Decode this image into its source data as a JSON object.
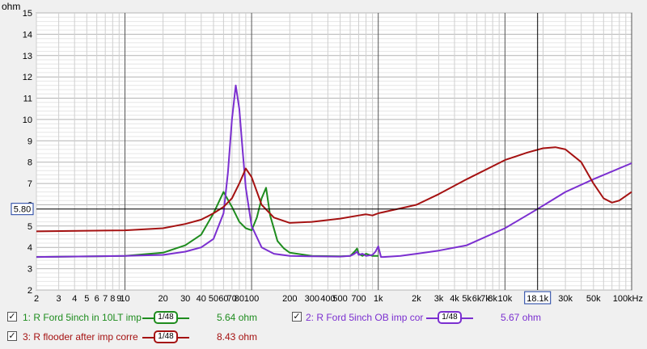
{
  "chart_data": {
    "type": "line",
    "yunit": "ohm",
    "xunit": "kHz",
    "ylim": [
      2,
      15
    ],
    "xlim": [
      2,
      100000
    ],
    "xscale": "log",
    "grid": true,
    "yticks": [
      "2",
      "3",
      "4",
      "5",
      "6",
      "7",
      "8",
      "9",
      "10",
      "11",
      "12",
      "13",
      "14",
      "15"
    ],
    "ytick_values": [
      2,
      3,
      4,
      5,
      6,
      7,
      8,
      9,
      10,
      11,
      12,
      13,
      14,
      15
    ],
    "xticks": [
      "2",
      "3",
      "4",
      "5",
      "6",
      "7",
      "8",
      "9",
      "10",
      "20",
      "30",
      "40",
      "50",
      "60",
      "70",
      "80",
      "100",
      "200",
      "300",
      "400",
      "500",
      "700",
      "1k",
      "2k",
      "3k",
      "4k",
      "5k",
      "6k",
      "7k",
      "8k",
      "10k",
      "18.1k",
      "30k",
      "50k",
      "100kHz"
    ],
    "xtick_values": [
      2,
      3,
      4,
      5,
      6,
      7,
      8,
      9,
      10,
      20,
      30,
      40,
      50,
      60,
      70,
      80,
      100,
      200,
      300,
      400,
      500,
      700,
      1000,
      2000,
      3000,
      4000,
      5000,
      6000,
      7000,
      8000,
      10000,
      18100,
      30000,
      50000,
      100000
    ],
    "cursor": {
      "x": 18100,
      "x_label": "18.1k",
      "y": 5.8,
      "y_label": "5.80"
    },
    "series": [
      {
        "name": "1: R Ford 5inch in 10LT imp",
        "color": "#1e8c1e",
        "x": [
          2,
          10,
          20,
          30,
          40,
          50,
          60,
          70,
          80,
          90,
          100,
          110,
          120,
          130,
          140,
          160,
          180,
          200,
          300,
          500,
          600,
          650,
          680,
          700,
          750,
          800,
          900,
          1000
        ],
        "y": [
          3.55,
          3.6,
          3.75,
          4.1,
          4.6,
          5.6,
          6.6,
          5.9,
          5.2,
          4.9,
          4.8,
          5.4,
          6.3,
          6.8,
          5.5,
          4.3,
          3.95,
          3.75,
          3.6,
          3.58,
          3.6,
          3.8,
          3.95,
          3.7,
          3.6,
          3.7,
          3.6,
          3.6
        ]
      },
      {
        "name": "2: R Ford 5inch OB imp cor",
        "color": "#7b2fd0",
        "x": [
          2,
          10,
          20,
          30,
          40,
          50,
          60,
          65,
          70,
          75,
          80,
          85,
          90,
          100,
          120,
          150,
          200,
          300,
          500,
          600,
          650,
          680,
          700,
          750,
          800,
          900,
          950,
          1000,
          1050,
          1100,
          1500,
          2000,
          3000,
          5000,
          10000,
          18100,
          30000,
          50000,
          100000
        ],
        "y": [
          3.55,
          3.6,
          3.65,
          3.8,
          4.0,
          4.4,
          5.6,
          7.5,
          10.0,
          11.6,
          10.5,
          8.5,
          6.8,
          5.0,
          4.0,
          3.7,
          3.6,
          3.58,
          3.57,
          3.6,
          3.7,
          3.8,
          3.65,
          3.7,
          3.6,
          3.65,
          3.8,
          4.05,
          3.55,
          3.55,
          3.6,
          3.7,
          3.85,
          4.1,
          4.9,
          5.8,
          6.6,
          7.2,
          7.95
        ]
      },
      {
        "name": "3: R flooder after imp corre",
        "color": "#a51212",
        "x": [
          2,
          10,
          20,
          30,
          40,
          50,
          60,
          70,
          80,
          90,
          100,
          120,
          150,
          200,
          300,
          500,
          700,
          800,
          900,
          1000,
          2000,
          3000,
          5000,
          10000,
          15000,
          20000,
          25000,
          30000,
          40000,
          50000,
          60000,
          70000,
          80000,
          100000
        ],
        "y": [
          4.75,
          4.8,
          4.9,
          5.1,
          5.3,
          5.6,
          5.9,
          6.3,
          7.0,
          7.7,
          7.3,
          6.0,
          5.4,
          5.15,
          5.2,
          5.35,
          5.5,
          5.55,
          5.5,
          5.6,
          6.0,
          6.5,
          7.2,
          8.1,
          8.45,
          8.65,
          8.7,
          8.6,
          8.0,
          7.0,
          6.3,
          6.1,
          6.2,
          6.6
        ]
      }
    ]
  },
  "legend": [
    {
      "label": "1: R Ford 5inch in 10LT imp",
      "smoothing": "1/48",
      "value": "5.64 ohm",
      "color": "#1e8c1e",
      "checked": "✓"
    },
    {
      "label": "2: R Ford 5inch OB imp cor",
      "smoothing": "1/48",
      "value": "5.67 ohm",
      "color": "#7b2fd0",
      "checked": "✓"
    },
    {
      "label": "3: R flooder after imp corre",
      "smoothing": "1/48",
      "value": "8.43 ohm",
      "color": "#a51212",
      "checked": "✓"
    }
  ]
}
